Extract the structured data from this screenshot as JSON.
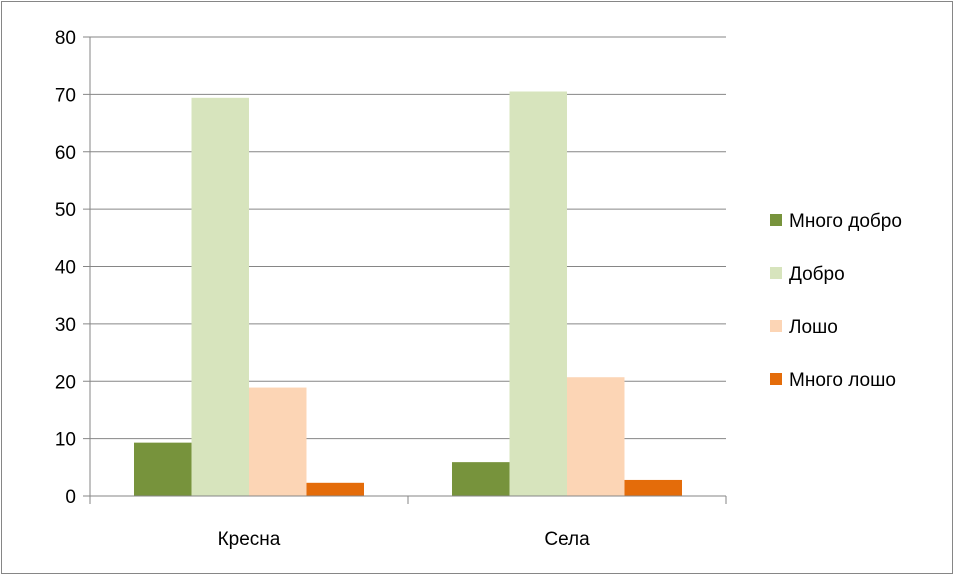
{
  "chart_data": {
    "type": "bar",
    "categories": [
      "Кресна",
      "Села"
    ],
    "series": [
      {
        "name": "Много добро",
        "values": [
          9.3,
          5.9
        ],
        "color": "#77933c"
      },
      {
        "name": "Добро",
        "values": [
          69.4,
          70.5
        ],
        "color": "#d7e4bd"
      },
      {
        "name": "Лошо",
        "values": [
          18.9,
          20.7
        ],
        "color": "#fcd5b5"
      },
      {
        "name": "Много лошо",
        "values": [
          2.3,
          2.8
        ],
        "color": "#e46c0a"
      }
    ],
    "title": "",
    "xlabel": "",
    "ylabel": "",
    "ylim": [
      0,
      80
    ],
    "yticks": [
      0,
      10,
      20,
      30,
      40,
      50,
      60,
      70,
      80
    ],
    "grid": true,
    "legend_position": "right"
  }
}
